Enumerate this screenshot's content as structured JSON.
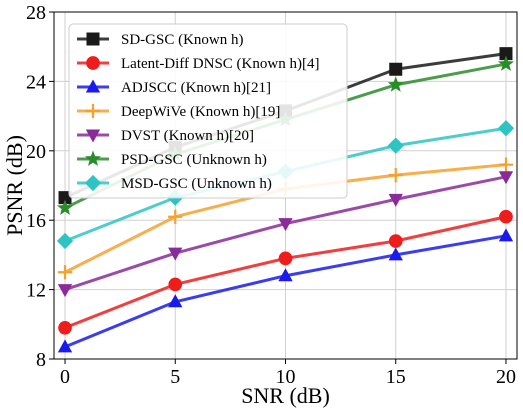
{
  "chart_data": {
    "type": "line",
    "xlabel": "SNR (dB)",
    "ylabel": "PSNR (dB)",
    "xlim": [
      -0.5,
      20.5
    ],
    "ylim": [
      8,
      28
    ],
    "x_ticks": [
      0,
      5,
      10,
      15,
      20
    ],
    "y_ticks": [
      8,
      12,
      16,
      20,
      24,
      28
    ],
    "grid": true,
    "legend_position": "upper-left",
    "x": [
      0,
      5,
      10,
      15,
      20
    ],
    "series": [
      {
        "name": "SD-GSC (Known h)",
        "color": "#1a1a1a",
        "marker": "square",
        "values": [
          17.3,
          20.2,
          22.3,
          24.7,
          25.6
        ]
      },
      {
        "name": "Latent-Diff DNSC (Known h)[4]",
        "color": "#ef1c1c",
        "marker": "circle",
        "values": [
          9.8,
          12.3,
          13.8,
          14.8,
          16.2
        ]
      },
      {
        "name": "ADJSCC (Known h)[21]",
        "color": "#1a1aee",
        "marker": "triangle-up",
        "values": [
          8.7,
          11.3,
          12.8,
          14.0,
          15.1
        ]
      },
      {
        "name": "DeepWiVe (Known h)[19]",
        "color": "#f7a02c",
        "marker": "plus",
        "values": [
          13.0,
          16.2,
          17.8,
          18.6,
          19.2
        ]
      },
      {
        "name": "DVST (Known h)[20]",
        "color": "#8b2a9a",
        "marker": "triangle-down",
        "values": [
          12.0,
          14.1,
          15.8,
          17.2,
          18.5
        ]
      },
      {
        "name": "PSD-GSC (Unknown h)",
        "color": "#2a8c2a",
        "marker": "star",
        "values": [
          16.7,
          19.8,
          21.8,
          23.8,
          25.0
        ]
      },
      {
        "name": "MSD-GSC (Unknown h)",
        "color": "#2ec4c4",
        "marker": "diamond",
        "values": [
          14.8,
          17.3,
          18.8,
          20.3,
          21.3
        ]
      }
    ]
  }
}
